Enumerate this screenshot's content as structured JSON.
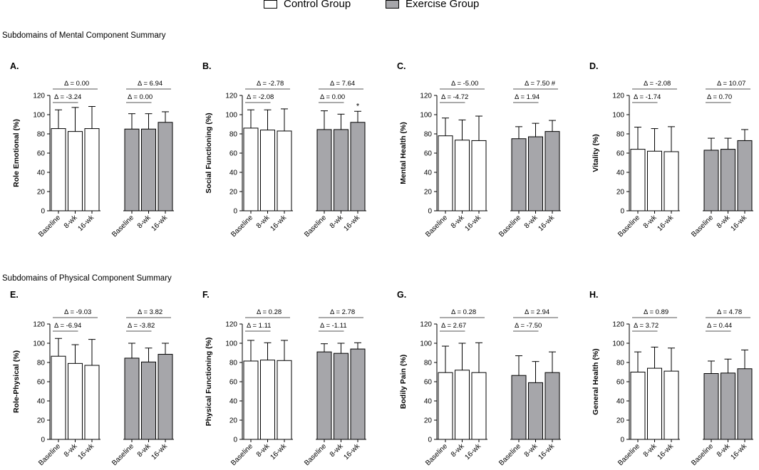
{
  "legend": {
    "control_label": "Control Group",
    "exercise_label": "Exercise Group",
    "control_color": "#ffffff",
    "exercise_color": "#a6a6aa"
  },
  "sections": {
    "mental_title": "Subdomains of Mental Component Summary",
    "physical_title": "Subdomains of Physical Component Summary"
  },
  "chart_data": [
    {
      "type": "bar",
      "panel": "A.",
      "ylabel": "Role Emotional (%)",
      "ylim": [
        0,
        120
      ],
      "yticks": [
        0,
        20,
        40,
        60,
        80,
        100,
        120
      ],
      "categories": [
        "Baseline",
        "8-wk",
        "16-wk"
      ],
      "series": [
        {
          "name": "Control Group",
          "values": [
            85.5,
            82.5,
            85.5
          ],
          "errors": [
            19.5,
            25,
            23
          ]
        },
        {
          "name": "Exercise Group",
          "values": [
            85,
            85,
            92
          ],
          "errors": [
            16,
            16,
            11
          ]
        }
      ],
      "annotations": {
        "control": {
          "lower": "Δ = -3.24",
          "upper": "Δ = 0.00"
        },
        "exercise": {
          "lower": "Δ = 0.00",
          "upper": "Δ = 6.94"
        }
      },
      "markers": []
    },
    {
      "type": "bar",
      "panel": "B.",
      "ylabel": "Social Functioning (%)",
      "ylim": [
        0,
        120
      ],
      "yticks": [
        0,
        20,
        40,
        60,
        80,
        100,
        120
      ],
      "categories": [
        "Baseline",
        "8-wk",
        "16-wk"
      ],
      "series": [
        {
          "name": "Control Group",
          "values": [
            86,
            84,
            83
          ],
          "errors": [
            19,
            21,
            23
          ]
        },
        {
          "name": "Exercise Group",
          "values": [
            84.5,
            84.5,
            92
          ],
          "errors": [
            19.5,
            16,
            11.5
          ]
        }
      ],
      "annotations": {
        "control": {
          "lower": "Δ = -2.08",
          "upper": "Δ = -2.78"
        },
        "exercise": {
          "lower": "Δ = 0.00",
          "upper": "Δ = 7.64"
        }
      },
      "markers": [
        {
          "series": 1,
          "category": 2,
          "text": "*"
        }
      ]
    },
    {
      "type": "bar",
      "panel": "C.",
      "ylabel": "Mental Health (%)",
      "ylim": [
        0,
        120
      ],
      "yticks": [
        0,
        20,
        40,
        60,
        80,
        100,
        120
      ],
      "categories": [
        "Baseline",
        "8-wk",
        "16-wk"
      ],
      "series": [
        {
          "name": "Control Group",
          "values": [
            78,
            73.5,
            73
          ],
          "errors": [
            18.5,
            21,
            25.5
          ]
        },
        {
          "name": "Exercise Group",
          "values": [
            75,
            77,
            82.5
          ],
          "errors": [
            12.5,
            14,
            11.5
          ]
        }
      ],
      "annotations": {
        "control": {
          "lower": "Δ = -4.72",
          "upper": "Δ = -5.00"
        },
        "exercise": {
          "lower": "Δ = 1.94",
          "upper": "Δ = 7.50 #"
        }
      },
      "markers": []
    },
    {
      "type": "bar",
      "panel": "D.",
      "ylabel": "Vitality (%)",
      "ylim": [
        0,
        120
      ],
      "yticks": [
        0,
        20,
        40,
        60,
        80,
        100,
        120
      ],
      "categories": [
        "Baseline",
        "8-wk",
        "16-wk"
      ],
      "series": [
        {
          "name": "Control Group",
          "values": [
            64,
            62,
            61.5
          ],
          "errors": [
            23,
            23.5,
            26
          ]
        },
        {
          "name": "Exercise Group",
          "values": [
            63,
            64,
            73
          ],
          "errors": [
            12.5,
            11.5,
            11.5
          ]
        }
      ],
      "annotations": {
        "control": {
          "lower": "Δ = -1.74",
          "upper": "Δ = -2.08"
        },
        "exercise": {
          "lower": "Δ = 0.70",
          "upper": "Δ = 10.07"
        }
      },
      "markers": []
    },
    {
      "type": "bar",
      "panel": "E.",
      "ylabel": "Role-Physical (%)",
      "ylim": [
        0,
        120
      ],
      "yticks": [
        0,
        20,
        40,
        60,
        80,
        100,
        120
      ],
      "categories": [
        "Baseline",
        "8-wk",
        "16-wk"
      ],
      "series": [
        {
          "name": "Control Group",
          "values": [
            86.5,
            79,
            77
          ],
          "errors": [
            18.5,
            19.5,
            27
          ]
        },
        {
          "name": "Exercise Group",
          "values": [
            84.5,
            80.5,
            88.5
          ],
          "errors": [
            15.5,
            14.5,
            11.5
          ]
        }
      ],
      "annotations": {
        "control": {
          "lower": "Δ = -6.94",
          "upper": "Δ = -9.03"
        },
        "exercise": {
          "lower": "Δ = -3.82",
          "upper": "Δ = 3.82"
        }
      },
      "markers": []
    },
    {
      "type": "bar",
      "panel": "F.",
      "ylabel": "Physical Functioning (%)",
      "ylim": [
        0,
        120
      ],
      "yticks": [
        0,
        20,
        40,
        60,
        80,
        100,
        120
      ],
      "categories": [
        "Baseline",
        "8-wk",
        "16-wk"
      ],
      "series": [
        {
          "name": "Control Group",
          "values": [
            81.5,
            82.5,
            82
          ],
          "errors": [
            21.5,
            18,
            21
          ]
        },
        {
          "name": "Exercise Group",
          "values": [
            91,
            89.5,
            94
          ],
          "errors": [
            8.5,
            10.5,
            6.5
          ]
        }
      ],
      "annotations": {
        "control": {
          "lower": "Δ = 1.11",
          "upper": "Δ = 0.28"
        },
        "exercise": {
          "lower": "Δ = -1.11",
          "upper": "Δ = 2.78"
        }
      },
      "markers": []
    },
    {
      "type": "bar",
      "panel": "G.",
      "ylabel": "Bodily Pain (%)",
      "ylim": [
        0,
        120
      ],
      "yticks": [
        0,
        20,
        40,
        60,
        80,
        100,
        120
      ],
      "categories": [
        "Baseline",
        "8-wk",
        "16-wk"
      ],
      "series": [
        {
          "name": "Control Group",
          "values": [
            69.5,
            72,
            69.5
          ],
          "errors": [
            27.5,
            28,
            31
          ]
        },
        {
          "name": "Exercise Group",
          "values": [
            66.5,
            59,
            69.5
          ],
          "errors": [
            20.5,
            22,
            21.5
          ]
        }
      ],
      "annotations": {
        "control": {
          "lower": "Δ = 2.67",
          "upper": "Δ = 0.28"
        },
        "exercise": {
          "lower": "Δ = -7.50",
          "upper": "Δ = 2.94"
        }
      },
      "markers": []
    },
    {
      "type": "bar",
      "panel": "H.",
      "ylabel": "General Health (%)",
      "ylim": [
        0,
        120
      ],
      "yticks": [
        0,
        20,
        40,
        60,
        80,
        100,
        120
      ],
      "categories": [
        "Baseline",
        "8-wk",
        "16-wk"
      ],
      "series": [
        {
          "name": "Control Group",
          "values": [
            70,
            74,
            71
          ],
          "errors": [
            21,
            22,
            24
          ]
        },
        {
          "name": "Exercise Group",
          "values": [
            68.5,
            69,
            73.5
          ],
          "errors": [
            13,
            14.5,
            19.5
          ]
        }
      ],
      "annotations": {
        "control": {
          "lower": "Δ = 3.72",
          "upper": "Δ = 0.89"
        },
        "exercise": {
          "lower": "Δ = 0.44",
          "upper": "Δ = 4.78"
        }
      },
      "markers": []
    }
  ]
}
